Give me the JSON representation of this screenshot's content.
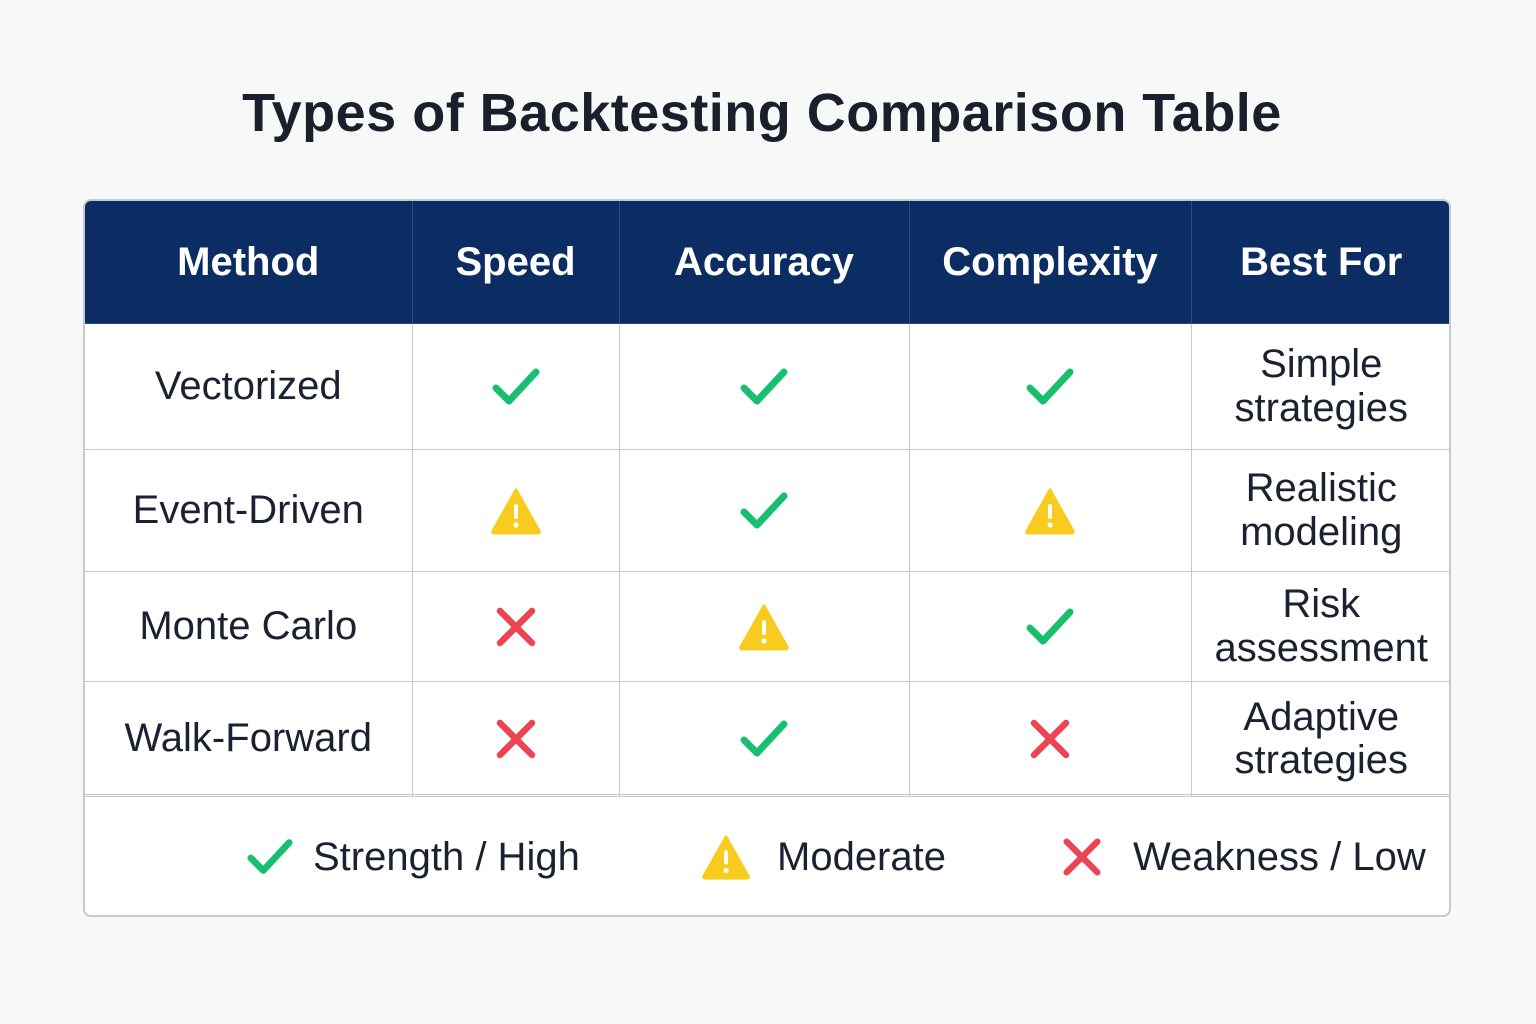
{
  "title": "Types of Backtesting Comparison Table",
  "colors": {
    "header_bg": "#0c2d63",
    "strength": "#17bf6f",
    "moderate": "#f7cc1f",
    "weakness": "#ec4453"
  },
  "table": {
    "headers": [
      "Method",
      "Speed",
      "Accuracy",
      "Complexity",
      "Best For"
    ],
    "rows": [
      {
        "method": "Vectorized",
        "speed": "strength",
        "accuracy": "strength",
        "complexity": "strength",
        "best_for": [
          "Simple",
          "strategies"
        ]
      },
      {
        "method": "Event-Driven",
        "speed": "moderate",
        "accuracy": "strength",
        "complexity": "moderate",
        "best_for": [
          "Realistic",
          "modeling"
        ]
      },
      {
        "method": "Monte Carlo",
        "speed": "weakness",
        "accuracy": "moderate",
        "complexity": "strength",
        "best_for": [
          "Risk",
          "assessment"
        ]
      },
      {
        "method": "Walk-Forward",
        "speed": "weakness",
        "accuracy": "strength",
        "complexity": "weakness",
        "best_for": [
          "Adaptive",
          "strategies"
        ]
      }
    ]
  },
  "legend": {
    "strength": {
      "icon": "check-icon",
      "label": "Strength / High"
    },
    "moderate": {
      "icon": "warning-icon",
      "label": "Moderate"
    },
    "weakness": {
      "icon": "x-icon",
      "label": "Weakness / Low"
    }
  }
}
